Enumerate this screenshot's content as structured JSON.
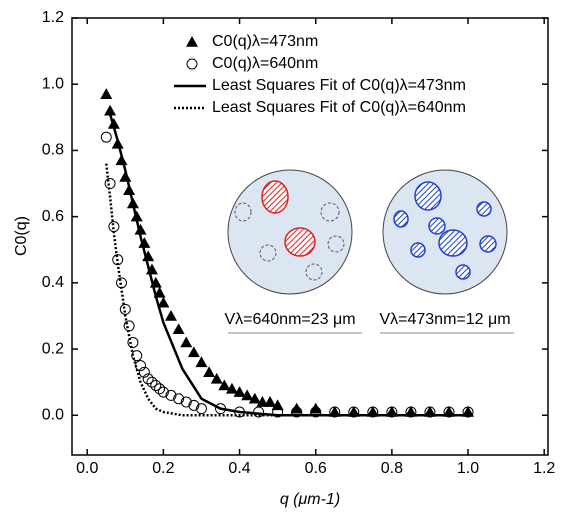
{
  "chart_data": {
    "type": "scatter",
    "xlabel": "q (μm-1)",
    "ylabel": "C0(q)",
    "xlim": [
      -0.04,
      1.21
    ],
    "ylim": [
      -0.12,
      1.2
    ],
    "xticks": [
      {
        "value": 0,
        "label": "0.0"
      },
      0.2,
      0.4,
      0.6,
      0.8,
      {
        "value": 1,
        "label": "1.0"
      },
      1.2
    ],
    "yticks": [
      {
        "value": 0,
        "label": "0.0"
      },
      0.2,
      0.4,
      0.6,
      0.8,
      {
        "value": 1,
        "label": "1.0"
      },
      1.2
    ],
    "grid": false,
    "legend": "upper right",
    "series": [
      {
        "name": "C0(q)λ=473nm",
        "type": "scatter",
        "marker": "triangle",
        "color": "#000000",
        "x": [
          0.05,
          0.06,
          0.07,
          0.08,
          0.09,
          0.1,
          0.11,
          0.12,
          0.13,
          0.14,
          0.15,
          0.16,
          0.17,
          0.18,
          0.19,
          0.2,
          0.22,
          0.24,
          0.26,
          0.28,
          0.3,
          0.32,
          0.34,
          0.36,
          0.38,
          0.4,
          0.42,
          0.44,
          0.46,
          0.48,
          0.5,
          0.55,
          0.6,
          0.65,
          0.7,
          0.75,
          0.8,
          0.85,
          0.9,
          0.95,
          1.0
        ],
        "values": [
          0.97,
          0.92,
          0.88,
          0.82,
          0.77,
          0.72,
          0.68,
          0.64,
          0.6,
          0.56,
          0.52,
          0.48,
          0.44,
          0.4,
          0.37,
          0.34,
          0.3,
          0.26,
          0.22,
          0.19,
          0.16,
          0.13,
          0.11,
          0.09,
          0.08,
          0.07,
          0.06,
          0.05,
          0.04,
          0.04,
          0.03,
          0.02,
          0.02,
          0.01,
          0.01,
          0.01,
          0.01,
          0.01,
          0.01,
          0.01,
          0.01
        ]
      },
      {
        "name": "C0(q)λ=640nm",
        "type": "scatter",
        "marker": "circle-open",
        "color": "#000000",
        "x": [
          0.05,
          0.06,
          0.07,
          0.08,
          0.09,
          0.1,
          0.11,
          0.12,
          0.13,
          0.14,
          0.15,
          0.16,
          0.17,
          0.18,
          0.19,
          0.2,
          0.22,
          0.24,
          0.26,
          0.28,
          0.3,
          0.35,
          0.4,
          0.45,
          0.5,
          0.55,
          0.6,
          0.65,
          0.7,
          0.75,
          0.8,
          0.85,
          0.9,
          0.95,
          1.0
        ],
        "values": [
          0.84,
          0.7,
          0.57,
          0.47,
          0.4,
          0.32,
          0.27,
          0.22,
          0.18,
          0.15,
          0.13,
          0.11,
          0.1,
          0.09,
          0.08,
          0.07,
          0.06,
          0.05,
          0.04,
          0.03,
          0.02,
          0.02,
          0.01,
          0.01,
          0.01,
          0.01,
          0.01,
          0.01,
          0.01,
          0.01,
          0.01,
          0.01,
          0.01,
          0.01,
          0.01
        ]
      },
      {
        "name": "Least Squares Fit of C0(q)λ=473nm",
        "type": "line",
        "linestyle": "solid",
        "color": "#000000",
        "x": [
          0.06,
          0.08,
          0.1,
          0.12,
          0.14,
          0.16,
          0.18,
          0.2,
          0.25,
          0.3,
          0.35,
          0.4,
          0.5,
          0.6,
          0.8,
          1.0
        ],
        "values": [
          0.91,
          0.83,
          0.74,
          0.64,
          0.54,
          0.45,
          0.36,
          0.28,
          0.14,
          0.05,
          0.02,
          0.01,
          0,
          0,
          0,
          0
        ]
      },
      {
        "name": "Least Squares Fit of C0(q)λ=640nm",
        "type": "line",
        "linestyle": "dotted",
        "color": "#000000",
        "x": [
          0.05,
          0.06,
          0.07,
          0.08,
          0.1,
          0.12,
          0.14,
          0.16,
          0.18,
          0.2,
          0.25,
          0.3,
          0.4,
          0.6,
          0.8,
          1.0
        ],
        "values": [
          0.76,
          0.66,
          0.55,
          0.46,
          0.3,
          0.18,
          0.1,
          0.05,
          0.02,
          0.01,
          0,
          0,
          0,
          0,
          0,
          0
        ]
      }
    ],
    "annotations": [
      "Vλ=640nm=23 μm",
      "Vλ=473nm=12 μm"
    ]
  }
}
